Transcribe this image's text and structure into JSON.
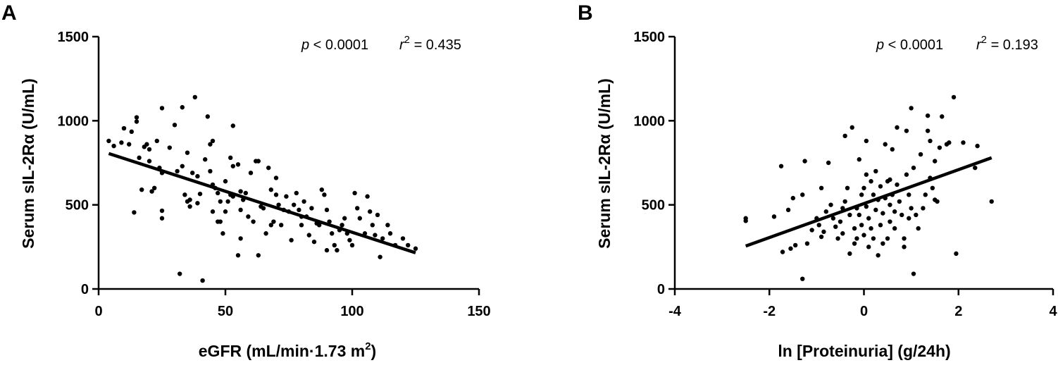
{
  "chart_data": [
    {
      "type": "scatter",
      "panel_label": "A",
      "xlabel": "eGFR (mL/min·1.73 m",
      "xlabel_sup": "2",
      "xlabel_close": ")",
      "ylabel": "Serum sIL-2Rα (U/mL)",
      "xlim": [
        0,
        150
      ],
      "ylim": [
        0,
        1500
      ],
      "xticks": [
        0,
        50,
        100,
        150
      ],
      "yticks": [
        0,
        500,
        1000,
        1500
      ],
      "stats": {
        "p_symbol": "p",
        "p_text": " < 0.0001",
        "r_symbol": "r",
        "r_sup": "2",
        "r_text": " = 0.435"
      },
      "fit_line": {
        "x": [
          4,
          125
        ],
        "y": [
          805,
          215
        ]
      },
      "points": [
        [
          4,
          880
        ],
        [
          6,
          850
        ],
        [
          9,
          870
        ],
        [
          10,
          955
        ],
        [
          12,
          860
        ],
        [
          13,
          935
        ],
        [
          15,
          1020
        ],
        [
          15,
          995
        ],
        [
          16,
          780
        ],
        [
          17,
          590
        ],
        [
          18,
          845
        ],
        [
          19,
          860
        ],
        [
          20,
          830
        ],
        [
          20,
          760
        ],
        [
          21,
          580
        ],
        [
          22,
          600
        ],
        [
          23,
          880
        ],
        [
          24,
          720
        ],
        [
          25,
          690
        ],
        [
          25,
          1075
        ],
        [
          25,
          465
        ],
        [
          25,
          420
        ],
        [
          28,
          840
        ],
        [
          30,
          975
        ],
        [
          31,
          700
        ],
        [
          33,
          730
        ],
        [
          33,
          1080
        ],
        [
          34,
          560
        ],
        [
          35,
          520
        ],
        [
          35,
          810
        ],
        [
          36,
          490
        ],
        [
          36,
          530
        ],
        [
          37,
          690
        ],
        [
          38,
          1140
        ],
        [
          39,
          670
        ],
        [
          39,
          510
        ],
        [
          40,
          565
        ],
        [
          42,
          770
        ],
        [
          43,
          1025
        ],
        [
          44,
          860
        ],
        [
          44,
          700
        ],
        [
          45,
          880
        ],
        [
          45,
          620
        ],
        [
          45,
          460
        ],
        [
          46,
          600
        ],
        [
          47,
          570
        ],
        [
          47,
          400
        ],
        [
          48,
          520
        ],
        [
          48,
          400
        ],
        [
          49,
          330
        ],
        [
          50,
          640
        ],
        [
          50,
          460
        ],
        [
          51,
          520
        ],
        [
          52,
          780
        ],
        [
          52,
          560
        ],
        [
          53,
          730
        ],
        [
          53,
          970
        ],
        [
          53,
          550
        ],
        [
          55,
          740
        ],
        [
          56,
          470
        ],
        [
          56,
          580
        ],
        [
          56,
          300
        ],
        [
          57,
          530
        ],
        [
          58,
          570
        ],
        [
          59,
          430
        ],
        [
          60,
          690
        ],
        [
          61,
          400
        ],
        [
          62,
          760
        ],
        [
          63,
          760
        ],
        [
          64,
          490
        ],
        [
          65,
          480
        ],
        [
          66,
          330
        ],
        [
          67,
          720
        ],
        [
          68,
          590
        ],
        [
          68,
          380
        ],
        [
          69,
          400
        ],
        [
          70,
          660
        ],
        [
          70,
          560
        ],
        [
          71,
          500
        ],
        [
          72,
          380
        ],
        [
          73,
          470
        ],
        [
          74,
          550
        ],
        [
          75,
          460
        ],
        [
          76,
          290
        ],
        [
          77,
          500
        ],
        [
          78,
          570
        ],
        [
          79,
          470
        ],
        [
          80,
          430
        ],
        [
          80,
          380
        ],
        [
          81,
          520
        ],
        [
          82,
          430
        ],
        [
          83,
          320
        ],
        [
          84,
          480
        ],
        [
          85,
          280
        ],
        [
          86,
          390
        ],
        [
          87,
          380
        ],
        [
          88,
          590
        ],
        [
          89,
          560
        ],
        [
          90,
          470
        ],
        [
          91,
          400
        ],
        [
          92,
          330
        ],
        [
          93,
          260
        ],
        [
          94,
          230
        ],
        [
          95,
          350
        ],
        [
          96,
          380
        ],
        [
          97,
          420
        ],
        [
          98,
          330
        ],
        [
          99,
          290
        ],
        [
          100,
          260
        ],
        [
          101,
          570
        ],
        [
          102,
          480
        ],
        [
          103,
          420
        ],
        [
          105,
          330
        ],
        [
          106,
          550
        ],
        [
          107,
          460
        ],
        [
          108,
          380
        ],
        [
          109,
          320
        ],
        [
          110,
          440
        ],
        [
          111,
          190
        ],
        [
          112,
          300
        ],
        [
          114,
          380
        ],
        [
          115,
          330
        ],
        [
          117,
          260
        ],
        [
          120,
          300
        ],
        [
          122,
          260
        ],
        [
          125,
          240
        ],
        [
          32,
          90
        ],
        [
          41,
          50
        ],
        [
          55,
          200
        ],
        [
          63,
          200
        ],
        [
          14,
          455
        ],
        [
          90,
          230
        ]
      ]
    },
    {
      "type": "scatter",
      "panel_label": "B",
      "xlabel": "ln [Proteinuria] (g/24h)",
      "ylabel": "Serum sIL-2Rα (U/mL)",
      "xlim": [
        -4,
        4
      ],
      "ylim": [
        0,
        1500
      ],
      "xticks": [
        -4,
        -2,
        0,
        2,
        4
      ],
      "yticks": [
        0,
        500,
        1000,
        1500
      ],
      "stats": {
        "p_symbol": "p",
        "p_text": " < 0.0001",
        "r_symbol": "r",
        "r_sup": "2",
        "r_text": " = 0.193"
      },
      "fit_line": {
        "x": [
          -2.5,
          2.7
        ],
        "y": [
          255,
          780
        ]
      },
      "points": [
        [
          -2.5,
          420
        ],
        [
          -2.5,
          405
        ],
        [
          -1.9,
          430
        ],
        [
          -1.75,
          730
        ],
        [
          -1.72,
          220
        ],
        [
          -1.6,
          470
        ],
        [
          -1.5,
          540
        ],
        [
          -1.45,
          260
        ],
        [
          -1.3,
          560
        ],
        [
          -1.3,
          60
        ],
        [
          -1.25,
          760
        ],
        [
          -1.2,
          270
        ],
        [
          -1.1,
          350
        ],
        [
          -1.0,
          420
        ],
        [
          -0.95,
          380
        ],
        [
          -0.9,
          600
        ],
        [
          -0.85,
          340
        ],
        [
          -0.8,
          460
        ],
        [
          -0.75,
          750
        ],
        [
          -0.7,
          500
        ],
        [
          -0.65,
          420
        ],
        [
          -0.6,
          370
        ],
        [
          -0.55,
          300
        ],
        [
          -0.5,
          400
        ],
        [
          -0.45,
          330
        ],
        [
          -0.4,
          910
        ],
        [
          -0.4,
          520
        ],
        [
          -0.35,
          600
        ],
        [
          -0.3,
          440
        ],
        [
          -0.3,
          210
        ],
        [
          -0.25,
          960
        ],
        [
          -0.2,
          360
        ],
        [
          -0.15,
          480
        ],
        [
          -0.15,
          300
        ],
        [
          -0.1,
          770
        ],
        [
          -0.1,
          440
        ],
        [
          -0.05,
          560
        ],
        [
          -0.05,
          380
        ],
        [
          0.0,
          600
        ],
        [
          0.0,
          320
        ],
        [
          0.05,
          880
        ],
        [
          0.05,
          680
        ],
        [
          0.05,
          490
        ],
        [
          0.1,
          420
        ],
        [
          0.1,
          250
        ],
        [
          0.15,
          640
        ],
        [
          0.15,
          360
        ],
        [
          0.2,
          560
        ],
        [
          0.2,
          300
        ],
        [
          0.25,
          700
        ],
        [
          0.25,
          470
        ],
        [
          0.3,
          530
        ],
        [
          0.3,
          200
        ],
        [
          0.35,
          610
        ],
        [
          0.35,
          380
        ],
        [
          0.4,
          450
        ],
        [
          0.45,
          860
        ],
        [
          0.45,
          540
        ],
        [
          0.5,
          300
        ],
        [
          0.5,
          640
        ],
        [
          0.55,
          500
        ],
        [
          0.55,
          400
        ],
        [
          0.6,
          830
        ],
        [
          0.6,
          560
        ],
        [
          0.65,
          460
        ],
        [
          0.65,
          360
        ],
        [
          0.7,
          960
        ],
        [
          0.7,
          620
        ],
        [
          0.75,
          520
        ],
        [
          0.8,
          440
        ],
        [
          0.85,
          300
        ],
        [
          0.9,
          680
        ],
        [
          0.9,
          940
        ],
        [
          0.95,
          560
        ],
        [
          0.95,
          420
        ],
        [
          1.0,
          1075
        ],
        [
          1.0,
          480
        ],
        [
          1.05,
          720
        ],
        [
          1.05,
          90
        ],
        [
          1.1,
          440
        ],
        [
          1.15,
          360
        ],
        [
          1.2,
          800
        ],
        [
          1.3,
          560
        ],
        [
          1.35,
          1030
        ],
        [
          1.35,
          940
        ],
        [
          1.4,
          660
        ],
        [
          1.4,
          880
        ],
        [
          1.45,
          600
        ],
        [
          1.5,
          760
        ],
        [
          1.5,
          530
        ],
        [
          1.55,
          520
        ],
        [
          1.6,
          840
        ],
        [
          1.65,
          1025
        ],
        [
          1.75,
          860
        ],
        [
          1.8,
          870
        ],
        [
          1.9,
          1140
        ],
        [
          1.95,
          210
        ],
        [
          2.1,
          870
        ],
        [
          2.35,
          720
        ],
        [
          2.4,
          850
        ],
        [
          2.7,
          520
        ],
        [
          -1.55,
          240
        ],
        [
          -0.9,
          310
        ],
        [
          -0.2,
          270
        ],
        [
          0.4,
          270
        ],
        [
          0.85,
          250
        ],
        [
          -0.45,
          480
        ],
        [
          0.55,
          650
        ],
        [
          1.25,
          480
        ]
      ]
    }
  ]
}
